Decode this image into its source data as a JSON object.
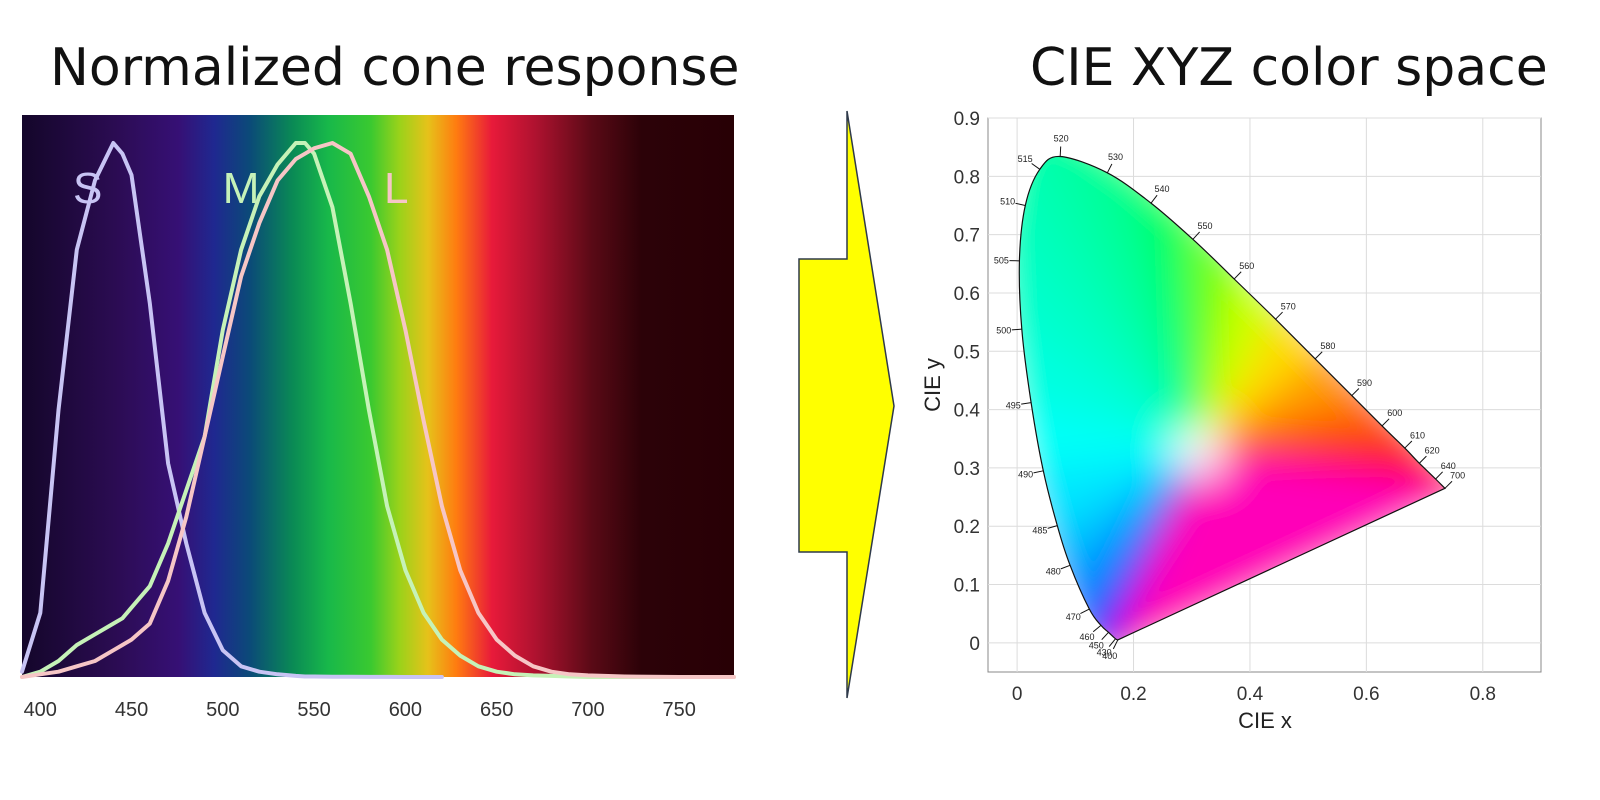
{
  "left_title": "Normalized cone response",
  "right_title": "CIE XYZ color space",
  "chart_data": [
    {
      "type": "line",
      "title": "Normalized cone response",
      "xlim": [
        390,
        780
      ],
      "ylim": [
        0,
        1
      ],
      "x_ticks": [
        "400",
        "450",
        "500",
        "550",
        "600",
        "650",
        "700",
        "750"
      ],
      "x": [
        390,
        400,
        410,
        420,
        430,
        440,
        445,
        450,
        460,
        470,
        480,
        490,
        500,
        510,
        520,
        530,
        540,
        545,
        550,
        560,
        570,
        580,
        590,
        600,
        610,
        620,
        630,
        640,
        650,
        660,
        670,
        680,
        690,
        700,
        720,
        750,
        780
      ],
      "series": [
        {
          "name": "S",
          "color": "#c8c4f4",
          "label_x": 426,
          "values": [
            0.01,
            0.12,
            0.5,
            0.8,
            0.93,
            1.0,
            0.98,
            0.94,
            0.7,
            0.4,
            0.25,
            0.12,
            0.05,
            0.02,
            0.01,
            0.005,
            0.002,
            0.001,
            0.001,
            0.0005,
            0.0003,
            0.0002,
            0.0001,
            0.0,
            0.0,
            0.0,
            null,
            null,
            null,
            null,
            null,
            null,
            null,
            null,
            null,
            null,
            null
          ]
        },
        {
          "name": "M",
          "color": "#c6f2b8",
          "label_x": 510,
          "values": [
            0.0,
            0.01,
            0.03,
            0.06,
            0.08,
            0.1,
            0.11,
            0.13,
            0.17,
            0.25,
            0.35,
            0.45,
            0.65,
            0.8,
            0.9,
            0.96,
            1.0,
            1.0,
            0.98,
            0.88,
            0.7,
            0.5,
            0.32,
            0.2,
            0.12,
            0.07,
            0.04,
            0.02,
            0.01,
            0.005,
            0.003,
            0.002,
            0.001,
            0.0,
            0.0,
            0.0,
            0.0
          ]
        },
        {
          "name": "L",
          "color": "#f6c6c6",
          "label_x": 595,
          "values": [
            0.0,
            0.005,
            0.01,
            0.02,
            0.03,
            0.05,
            0.06,
            0.07,
            0.1,
            0.18,
            0.3,
            0.45,
            0.6,
            0.75,
            0.85,
            0.93,
            0.97,
            0.98,
            0.99,
            1.0,
            0.98,
            0.9,
            0.8,
            0.65,
            0.48,
            0.32,
            0.2,
            0.12,
            0.07,
            0.04,
            0.02,
            0.01,
            0.005,
            0.003,
            0.001,
            0.0,
            0.0
          ]
        }
      ]
    },
    {
      "type": "scatter",
      "title": "CIE XYZ color space",
      "xlabel": "CIE x",
      "ylabel": "CIE y",
      "xlim": [
        -0.05,
        0.9
      ],
      "ylim": [
        -0.05,
        0.9
      ],
      "x_ticks": [
        "0",
        "0.2",
        "0.4",
        "0.6",
        "0.8"
      ],
      "y_ticks": [
        "0",
        "0.1",
        "0.2",
        "0.3",
        "0.4",
        "0.5",
        "0.6",
        "0.7",
        "0.8",
        "0.9"
      ],
      "grid": true,
      "white_point": [
        0.3127,
        0.329
      ],
      "spectral_locus": [
        {
          "nm": "400",
          "x": 0.173,
          "y": 0.005
        },
        {
          "nm": "430",
          "x": 0.169,
          "y": 0.007
        },
        {
          "nm": "450",
          "x": 0.157,
          "y": 0.018
        },
        {
          "nm": "460",
          "x": 0.144,
          "y": 0.03
        },
        {
          "nm": "470",
          "x": 0.124,
          "y": 0.058
        },
        {
          "nm": "480",
          "x": 0.091,
          "y": 0.133
        },
        {
          "nm": "485",
          "x": 0.069,
          "y": 0.201
        },
        {
          "nm": "490",
          "x": 0.045,
          "y": 0.295
        },
        {
          "nm": "495",
          "x": 0.024,
          "y": 0.412
        },
        {
          "nm": "500",
          "x": 0.008,
          "y": 0.538
        },
        {
          "nm": "505",
          "x": 0.004,
          "y": 0.655
        },
        {
          "nm": "510",
          "x": 0.014,
          "y": 0.75
        },
        {
          "nm": "515",
          "x": 0.039,
          "y": 0.812
        },
        {
          "nm": "520",
          "x": 0.074,
          "y": 0.834
        },
        {
          "nm": "530",
          "x": 0.155,
          "y": 0.806
        },
        {
          "nm": "540",
          "x": 0.23,
          "y": 0.754
        },
        {
          "nm": "550",
          "x": 0.302,
          "y": 0.692
        },
        {
          "nm": "560",
          "x": 0.373,
          "y": 0.624
        },
        {
          "nm": "570",
          "x": 0.444,
          "y": 0.555
        },
        {
          "nm": "580",
          "x": 0.512,
          "y": 0.487
        },
        {
          "nm": "590",
          "x": 0.575,
          "y": 0.424
        },
        {
          "nm": "600",
          "x": 0.627,
          "y": 0.372
        },
        {
          "nm": "610",
          "x": 0.666,
          "y": 0.334
        },
        {
          "nm": "620",
          "x": 0.691,
          "y": 0.308
        },
        {
          "nm": "640",
          "x": 0.719,
          "y": 0.281
        },
        {
          "nm": "700",
          "x": 0.735,
          "y": 0.265
        }
      ]
    }
  ]
}
